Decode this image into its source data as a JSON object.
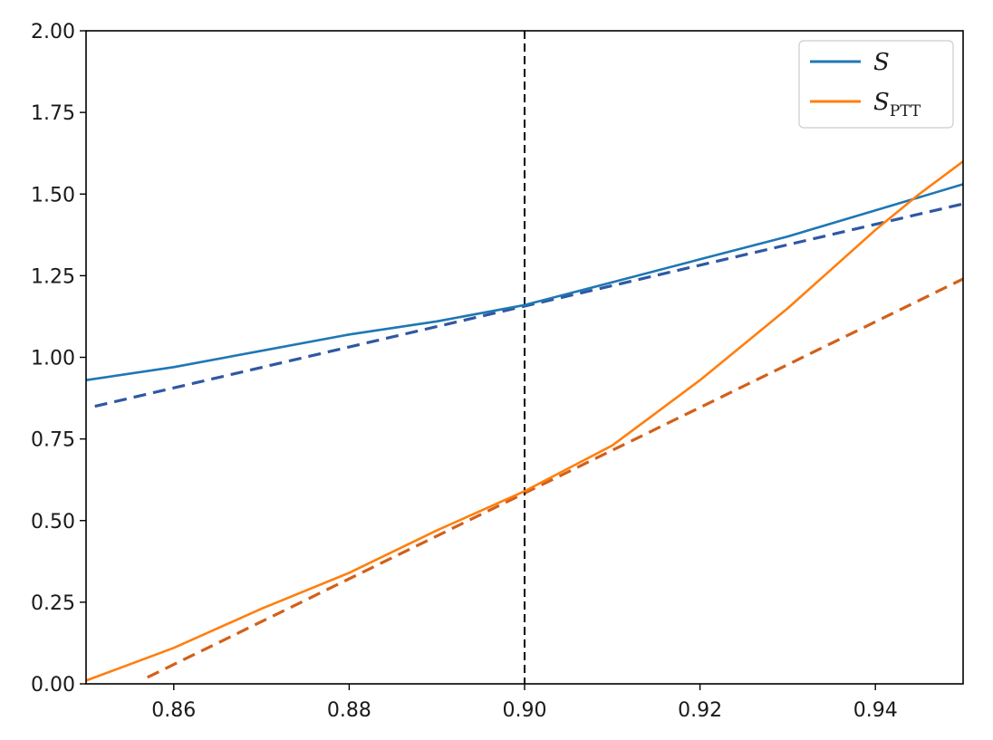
{
  "chart_data": {
    "type": "line",
    "title": "",
    "xlabel": "",
    "ylabel": "",
    "xlim": [
      0.85,
      0.95
    ],
    "ylim": [
      0.0,
      2.0
    ],
    "xticks": [
      "0.86",
      "0.88",
      "0.90",
      "0.92",
      "0.94"
    ],
    "yticks": [
      "0.00",
      "0.25",
      "0.50",
      "0.75",
      "1.00",
      "1.25",
      "1.50",
      "1.75",
      "2.00"
    ],
    "grid": false,
    "legend_position": "top-right",
    "series": [
      {
        "name": "S",
        "color": "#1f77b4",
        "style": "solid",
        "x": [
          0.85,
          0.86,
          0.87,
          0.88,
          0.89,
          0.9,
          0.91,
          0.92,
          0.93,
          0.94,
          0.95
        ],
        "y": [
          0.93,
          0.97,
          1.02,
          1.07,
          1.11,
          1.16,
          1.23,
          1.3,
          1.37,
          1.45,
          1.53
        ]
      },
      {
        "name": "S",
        "name_subscript": "PTT",
        "color": "#ff7f0e",
        "style": "solid",
        "x": [
          0.85,
          0.86,
          0.87,
          0.88,
          0.89,
          0.9,
          0.91,
          0.915,
          0.92,
          0.925,
          0.93,
          0.935,
          0.94,
          0.945,
          0.95
        ],
        "y": [
          0.01,
          0.11,
          0.23,
          0.34,
          0.47,
          0.59,
          0.73,
          0.83,
          0.93,
          1.04,
          1.15,
          1.27,
          1.39,
          1.5,
          1.6
        ]
      }
    ],
    "reference_lines": [
      {
        "color": "#2f58a3",
        "style": "dashed",
        "x": [
          0.851,
          0.95
        ],
        "y": [
          0.85,
          1.47
        ]
      },
      {
        "color": "#d2601a",
        "style": "dashed",
        "x": [
          0.857,
          0.95
        ],
        "y": [
          0.02,
          1.24
        ]
      },
      {
        "color": "#000000",
        "style": "dashed",
        "orientation": "vertical",
        "x": 0.9
      }
    ]
  }
}
